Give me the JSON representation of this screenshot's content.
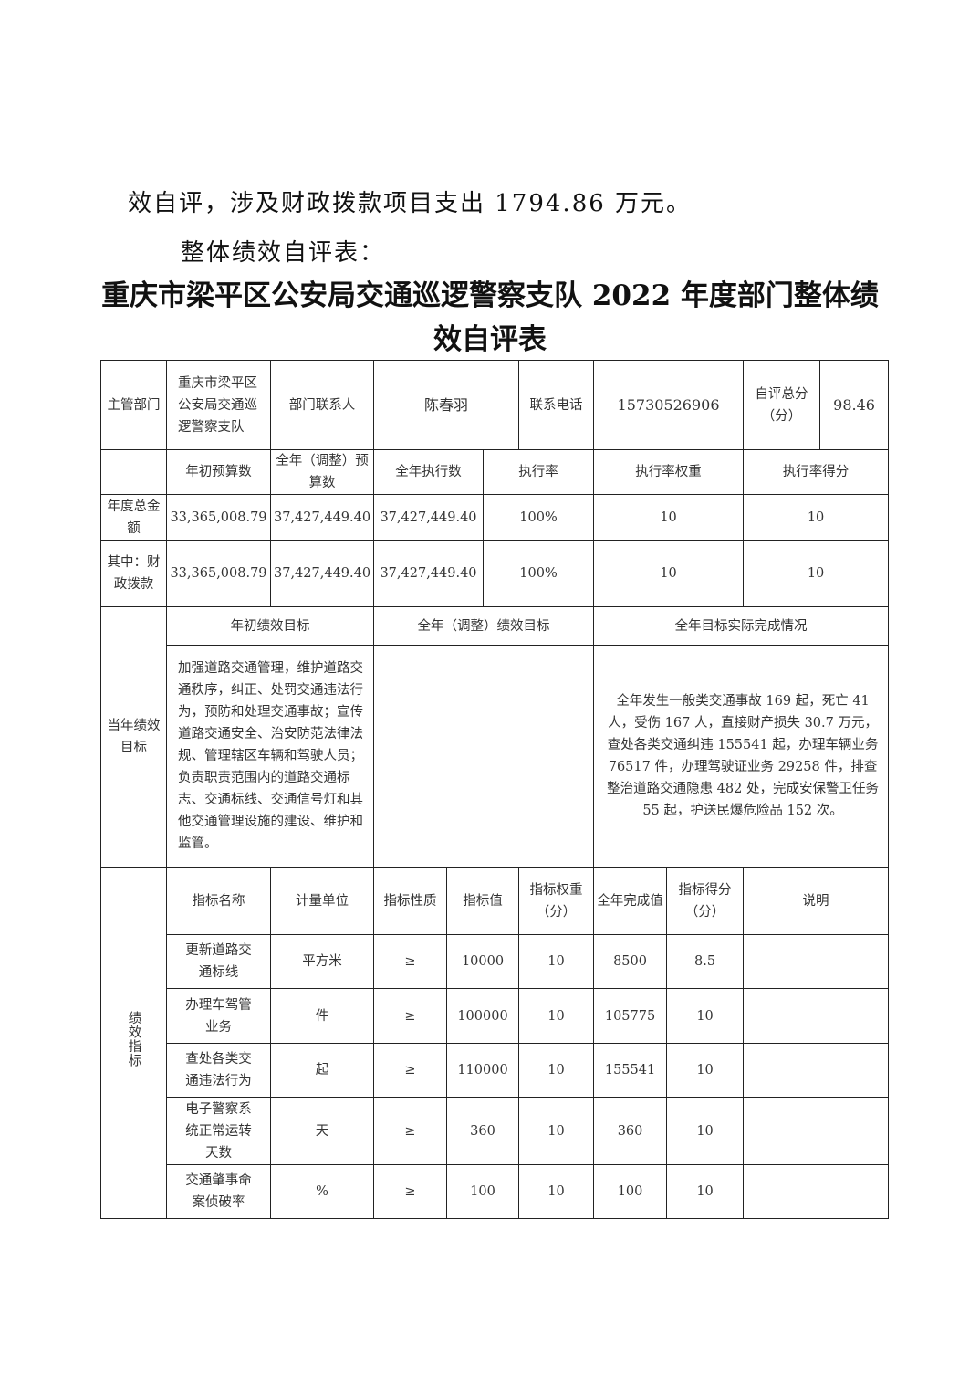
{
  "intro": "效自评，涉及财政拨款项目支出 1794.86 万元。",
  "subheading": "整体绩效自评表：",
  "title": "重庆市梁平区公安局交通巡逻警察支队 2022 年度部门整体绩效自评表",
  "info": {
    "dept_label": "主管部门",
    "dept": "重庆市梁平区公安局交通巡逻警察支队",
    "contact_label": "部门联系人",
    "contact": "陈春羽",
    "phone_label": "联系电话",
    "phone": "15730526906",
    "score_label": "自评总分（分）",
    "score": "98.46"
  },
  "budget": {
    "headers": [
      "",
      "年初预算数",
      "全年（调整）预算数",
      "全年执行数",
      "执行率",
      "执行率权重",
      "执行率得分"
    ],
    "rows": [
      {
        "label": "年度总金额",
        "initial": "33,365,008.79",
        "adjusted": "37,427,449.40",
        "executed": "37,427,449.40",
        "rate": "100%",
        "weight": "10",
        "score": "10"
      },
      {
        "label": "其中：财政拨款",
        "initial": "33,365,008.79",
        "adjusted": "37,427,449.40",
        "executed": "37,427,449.40",
        "rate": "100%",
        "weight": "10",
        "score": "10"
      }
    ]
  },
  "goals": {
    "label": "当年绩效目标",
    "headers": [
      "年初绩效目标",
      "全年（调整）绩效目标",
      "全年目标实际完成情况"
    ],
    "initial": "加强道路交通管理，维护道路交通秩序，纠正、处罚交通违法行为，预防和处理交通事故；宣传道路交通安全、治安防范法律法规、管理辖区车辆和驾驶人员；负责职责范围内的道路交通标志、交通标线、交通信号灯和其他交通管理设施的建设、维护和监管。",
    "adjusted": "",
    "actual": "全年发生一般类交通事故 169 起，死亡 41 人，受伤 167 人，直接财产损失 30.7 万元，查处各类交通纠违 155541 起，办理车辆业务 76517 件，办理驾驶证业务 29258 件，排查整治道路交通隐患 482 处，完成安保警卫任务 55 起，护送民爆危险品 152 次。"
  },
  "indicators": {
    "label": "绩效指标",
    "headers": [
      "指标名称",
      "计量单位",
      "指标性质",
      "指标值",
      "指标权重（分）",
      "全年完成值",
      "指标得分（分）",
      "说明"
    ],
    "rows": [
      {
        "name": "更新道路交通标线",
        "unit": "平方米",
        "nature": "≥",
        "target": "10000",
        "weight": "10",
        "actual": "8500",
        "score": "8.5",
        "note": ""
      },
      {
        "name": "办理车驾管业务",
        "unit": "件",
        "nature": "≥",
        "target": "100000",
        "weight": "10",
        "actual": "105775",
        "score": "10",
        "note": ""
      },
      {
        "name": "查处各类交通违法行为",
        "unit": "起",
        "nature": "≥",
        "target": "110000",
        "weight": "10",
        "actual": "155541",
        "score": "10",
        "note": ""
      },
      {
        "name": "电子警察系统正常运转天数",
        "unit": "天",
        "nature": "≥",
        "target": "360",
        "weight": "10",
        "actual": "360",
        "score": "10",
        "note": ""
      },
      {
        "name": "交通肇事命案侦破率",
        "unit": "%",
        "nature": "≥",
        "target": "100",
        "weight": "10",
        "actual": "100",
        "score": "10",
        "note": ""
      }
    ]
  }
}
